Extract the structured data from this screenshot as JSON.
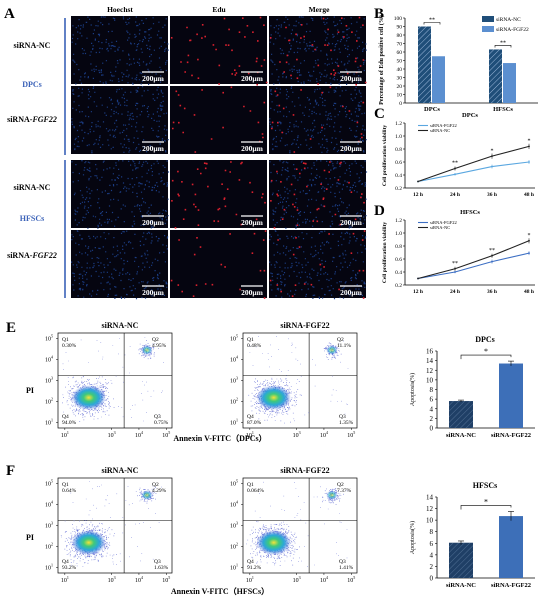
{
  "panels": {
    "A": {
      "letter": "A",
      "columns": [
        "Hoechst",
        "Edu",
        "Merge"
      ],
      "groups": [
        {
          "name": "DPCs",
          "rows": [
            {
              "prefix": "siRNA-",
              "gene": "NC"
            },
            {
              "prefix": "siRNA-",
              "gene": "FGF22"
            }
          ]
        },
        {
          "name": "HFSCs",
          "rows": [
            {
              "prefix": "siRNA-",
              "gene": "NC"
            },
            {
              "prefix": "siRNA-",
              "gene": "FGF22"
            }
          ]
        }
      ],
      "scalebar": "200μm",
      "colors": {
        "hoechst": "#1c3f8a",
        "edu": "#d8202e",
        "background": "#050510",
        "group_label": "#3b62b8"
      }
    },
    "B": {
      "letter": "B",
      "sig": [
        "**",
        "**"
      ]
    },
    "C": {
      "letter": "C",
      "sig": [
        "**",
        "*",
        "*"
      ]
    },
    "D": {
      "letter": "D",
      "sig": [
        "**",
        "**",
        "*"
      ]
    },
    "E": {
      "letter": "E",
      "flow": [
        {
          "title": "siRNA-NC",
          "q1": "0.30%",
          "q2": "4.95%",
          "q3": "0.75%",
          "q4": "94.0%"
        },
        {
          "title": "siRNA-FGF22",
          "q1": "0.48%",
          "q2": "11.1%",
          "q3": "1.35%",
          "q4": "87.0%"
        }
      ],
      "xlabel": "Annexin V-FITC（DPCs）",
      "ylabel": "PI",
      "sig": "*"
    },
    "F": {
      "letter": "F",
      "flow": [
        {
          "title": "siRNA-NC",
          "q1": "0.64%",
          "q2": "4.29%",
          "q3": "1.63%",
          "q4": "93.2%"
        },
        {
          "title": "siRNA-FGF22",
          "q1": "0.064%",
          "q2": "7.37%",
          "q3": "1.41%",
          "q4": "91.2%"
        }
      ],
      "xlabel": "Annexin V-FITC（HFSCs）",
      "ylabel": "PI",
      "sig": "*"
    }
  },
  "flow_axis": {
    "x_ticks": [
      {
        "b": "10",
        "e": "1"
      },
      {
        "b": "10",
        "e": "3"
      },
      {
        "b": "10",
        "e": "4"
      },
      {
        "b": "10",
        "e": "5"
      }
    ],
    "y_ticks": [
      {
        "b": "10",
        "e": "1"
      },
      {
        "b": "10",
        "e": "2"
      },
      {
        "b": "10",
        "e": "3"
      },
      {
        "b": "10",
        "e": "4"
      },
      {
        "b": "10",
        "e": "5"
      }
    ],
    "quadrants": [
      "Q1",
      "Q2",
      "Q3",
      "Q4"
    ]
  },
  "colors": {
    "nc": "#1f4e79",
    "fgf": "#5b8fd0",
    "nc_line": "#222222",
    "fgf_line_C": "#5aa7e0",
    "fgf_line_D": "#3d6fc4",
    "bar_E_nc": "#1f3f66",
    "bar_E_fgf": "#3d6fb8"
  },
  "chart_data": [
    {
      "id": "B",
      "type": "bar",
      "categories": [
        "DPCs",
        "HFSCs"
      ],
      "series": [
        {
          "name": "siRNA-NC",
          "values": [
            90,
            63
          ]
        },
        {
          "name": "siRNA-FGF22",
          "values": [
            55,
            47
          ]
        }
      ],
      "ylabel": "Percentage of Edu positive cell (%)",
      "ylim": [
        0,
        100
      ],
      "yticks": [
        0,
        10,
        20,
        30,
        40,
        50,
        60,
        70,
        80,
        90,
        100
      ],
      "legend": "top-right"
    },
    {
      "id": "C",
      "type": "line",
      "title": "DPCs",
      "x": [
        "12 h",
        "24 h",
        "36 h",
        "48 h"
      ],
      "series": [
        {
          "name": "siRNA-FGF22",
          "values": [
            0.3,
            0.41,
            0.53,
            0.6
          ],
          "errors": [
            0.01,
            0.02,
            0.03,
            0.03
          ]
        },
        {
          "name": "siRNA-NC",
          "values": [
            0.3,
            0.5,
            0.69,
            0.84
          ],
          "errors": [
            0.01,
            0.03,
            0.04,
            0.04
          ]
        }
      ],
      "ylabel": "Cell proliferation viability",
      "ylim": [
        0.2,
        1.2
      ],
      "yticks": [
        "0.2",
        "0.4",
        "0.6",
        "0.8",
        "1.0",
        "1.2"
      ],
      "legend": "top-left"
    },
    {
      "id": "D",
      "type": "line",
      "title": "HFSCs",
      "x": [
        "12 h",
        "24 h",
        "36 h",
        "48 h"
      ],
      "series": [
        {
          "name": "siRNA-FGF22",
          "values": [
            0.3,
            0.4,
            0.56,
            0.69
          ],
          "errors": [
            0.01,
            0.02,
            0.03,
            0.03
          ]
        },
        {
          "name": "siRNA-NC",
          "values": [
            0.3,
            0.45,
            0.65,
            0.88
          ],
          "errors": [
            0.01,
            0.03,
            0.03,
            0.04
          ]
        }
      ],
      "ylabel": "Cell proliferation viability",
      "ylim": [
        0.2,
        1.2
      ],
      "yticks": [
        "0.2",
        "0.4",
        "0.6",
        "0.8",
        "1.0",
        "1.2"
      ],
      "legend": "top-left"
    },
    {
      "id": "E",
      "type": "bar",
      "title": "DPCs",
      "categories": [
        "siRNA-NC",
        "siRNA-FGF22"
      ],
      "values": [
        5.6,
        13.4
      ],
      "errors": [
        0.2,
        0.5
      ],
      "ylabel": "Apoptosis(%)",
      "ylim": [
        0,
        16
      ],
      "yticks": [
        0,
        2,
        4,
        6,
        8,
        10,
        12,
        14,
        16
      ]
    },
    {
      "id": "F",
      "type": "bar",
      "title": "HFSCs",
      "categories": [
        "siRNA-NC",
        "siRNA-FGF22"
      ],
      "values": [
        6.1,
        10.7
      ],
      "errors": [
        0.3,
        0.8
      ],
      "ylabel": "Apoptosis(%)",
      "ylim": [
        0,
        14
      ],
      "yticks": [
        0,
        2,
        4,
        6,
        8,
        10,
        12,
        14
      ]
    }
  ]
}
